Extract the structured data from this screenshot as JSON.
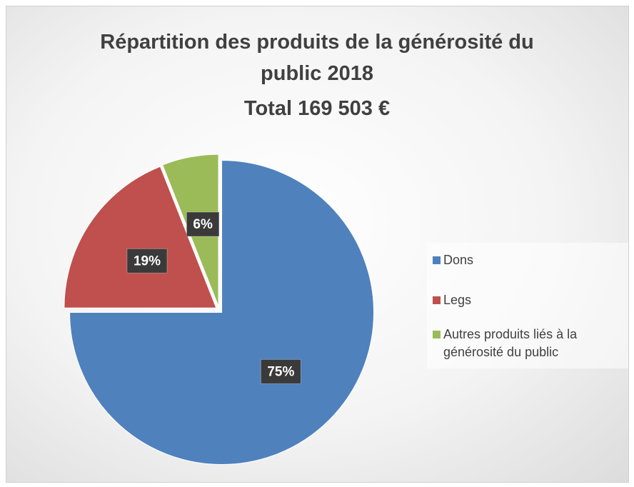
{
  "chart_data": {
    "type": "pie",
    "title": "Répartition des produits de la générosité du public 2018",
    "subtitle": "Total 169 503 €",
    "categories": [
      "Dons",
      "Legs",
      "Autres produits liés à la générosité du public"
    ],
    "values": [
      75,
      19,
      6
    ],
    "value_labels": [
      "75%",
      "19%",
      "6%"
    ],
    "colors": [
      "#4f81bd",
      "#c0504d",
      "#9bbb59"
    ],
    "legend": "right"
  }
}
